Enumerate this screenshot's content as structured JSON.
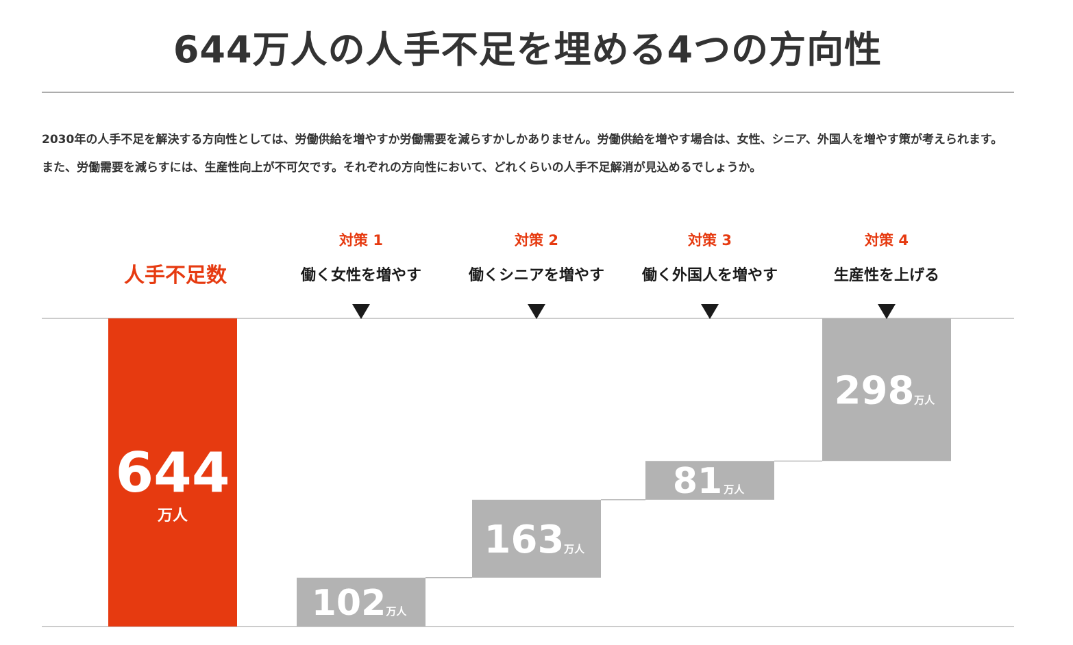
{
  "title": "644万人の人手不足を埋める4つの方向性",
  "intro": "2030年の人手不足を解決する方向性としては、労働供給を増やすか労働需要を減らすかしかありません。労働供給を増やす場合は、女性、シニア、外国人を増やす策が考えられます。また、労働需要を減らすには、生産性向上が不可欠です。それぞれの方向性において、どれくらいの人手不足解消が見込めるでしょうか。",
  "colors": {
    "shortage": "#e63a10",
    "measure": "#b3b3b3",
    "text": "#333333"
  },
  "chart_data": {
    "type": "bar",
    "subtype": "waterfall",
    "unit": "万人",
    "total": {
      "label": "人手不足数",
      "value": 644
    },
    "categories": [
      "働く女性を増やす",
      "働くシニアを増やす",
      "働く外国人を増やす",
      "生産性を上げる"
    ],
    "measure_labels": [
      "対策 1",
      "対策 2",
      "対策 3",
      "対策 4"
    ],
    "values": [
      102,
      163,
      81,
      298
    ],
    "ylim": [
      0,
      644
    ],
    "grid": false,
    "legend": "none"
  }
}
